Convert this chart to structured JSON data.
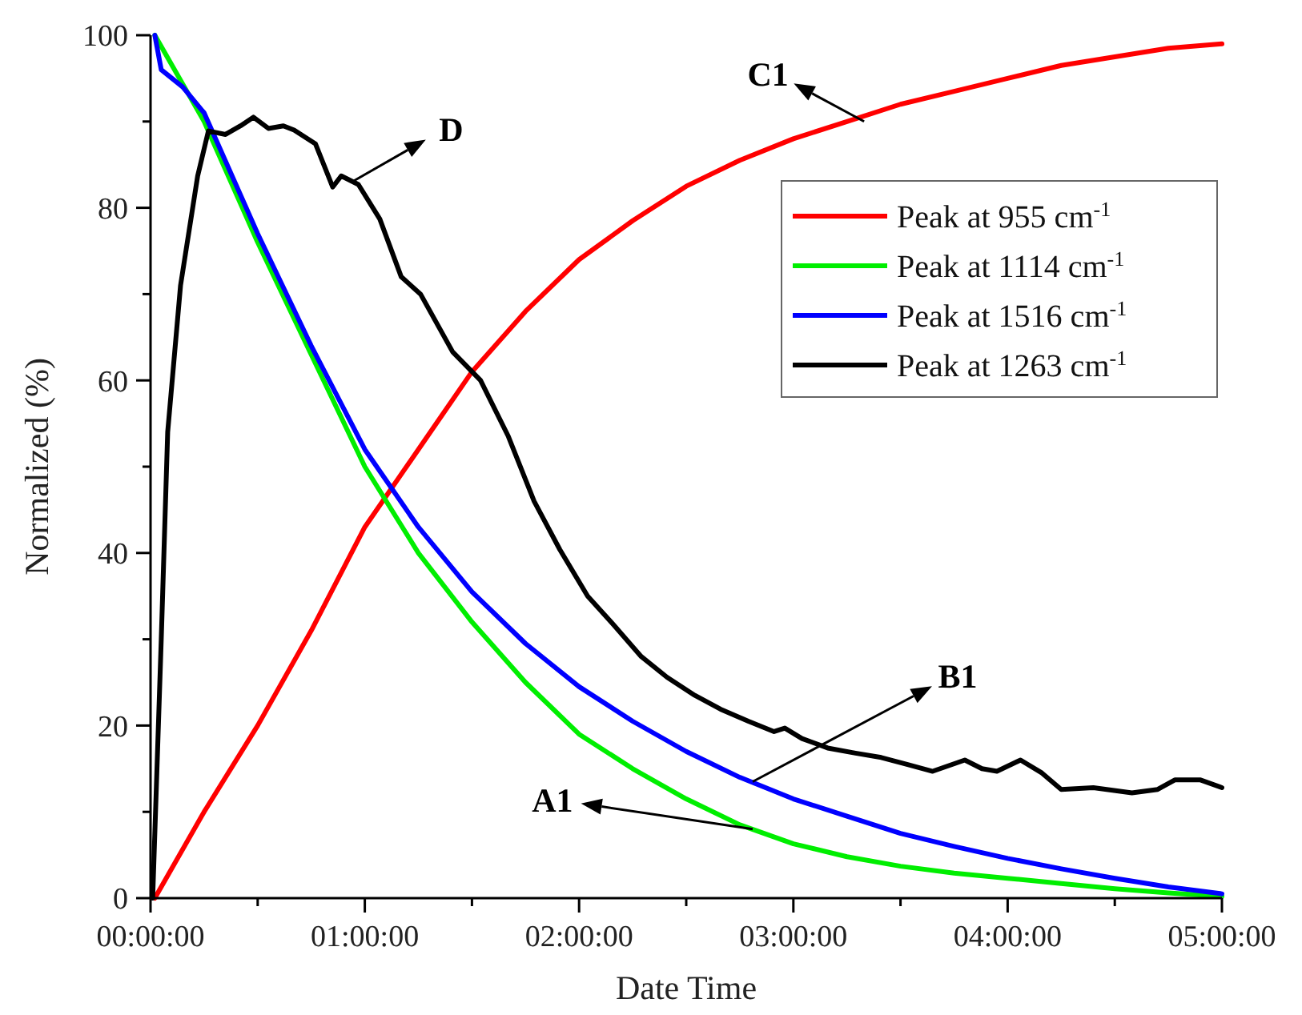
{
  "chart_data": {
    "type": "line",
    "xlabel": "Date Time",
    "ylabel": "Normalized (%)",
    "xlim": [
      0,
      5
    ],
    "ylim": [
      0,
      100
    ],
    "xticks": [
      {
        "value": 0,
        "label": "00:00:00"
      },
      {
        "value": 0.5,
        "label": null
      },
      {
        "value": 1,
        "label": "01:00:00"
      },
      {
        "value": 1.5,
        "label": null
      },
      {
        "value": 2,
        "label": "02:00:00"
      },
      {
        "value": 2.5,
        "label": null
      },
      {
        "value": 3,
        "label": "03:00:00"
      },
      {
        "value": 3.5,
        "label": null
      },
      {
        "value": 4,
        "label": "04:00:00"
      },
      {
        "value": 4.5,
        "label": null
      },
      {
        "value": 5,
        "label": "05:00:00"
      }
    ],
    "yticks": [
      0,
      {
        "value": 10,
        "label": null
      },
      20,
      {
        "value": 30,
        "label": null
      },
      40,
      {
        "value": 50,
        "label": null
      },
      60,
      {
        "value": 70,
        "label": null
      },
      80,
      {
        "value": 90,
        "label": null
      },
      100
    ],
    "grid": false,
    "legend": "top right",
    "marker": "none",
    "line_style": "solid",
    "series": [
      {
        "name": "Peak at 955 cm$^{-1}$",
        "color": "#ff0000",
        "x": [
          0.02,
          0.25,
          0.5,
          0.75,
          1,
          1.25,
          1.5,
          1.75,
          2,
          2.25,
          2.5,
          2.75,
          3,
          3.25,
          3.5,
          3.75,
          4,
          4.25,
          4.5,
          4.75,
          5
        ],
        "values": [
          0,
          10,
          20,
          31,
          43,
          52,
          61,
          68,
          74,
          78.5,
          82.5,
          85.5,
          88,
          90,
          92,
          93.5,
          95,
          96.5,
          97.5,
          98.5,
          99
        ]
      },
      {
        "name": "Peak at 1114 cm$^{-1}$",
        "color": "#00ee00",
        "x": [
          0.02,
          0.25,
          0.5,
          0.75,
          1,
          1.25,
          1.5,
          1.75,
          2,
          2.25,
          2.5,
          2.75,
          3,
          3.25,
          3.5,
          3.75,
          4,
          4.25,
          4.5,
          4.75,
          5
        ],
        "values": [
          100,
          90,
          76,
          63,
          50,
          40,
          32,
          25,
          19,
          15,
          11.5,
          8.5,
          6.3,
          4.8,
          3.7,
          2.9,
          2.3,
          1.7,
          1.1,
          0.6,
          0.2
        ]
      },
      {
        "name": "Peak at 1516 cm$^{-1}$",
        "color": "#0000ff",
        "x": [
          0.02,
          0.05,
          0.15,
          0.25,
          0.5,
          0.75,
          1,
          1.25,
          1.5,
          1.75,
          2,
          2.25,
          2.5,
          2.75,
          3,
          3.25,
          3.5,
          3.75,
          4,
          4.25,
          4.5,
          4.75,
          5
        ],
        "values": [
          100,
          96,
          94,
          91,
          77,
          64,
          52,
          43,
          35.5,
          29.5,
          24.5,
          20.5,
          17,
          14,
          11.5,
          9.5,
          7.5,
          6,
          4.6,
          3.4,
          2.3,
          1.3,
          0.5
        ]
      },
      {
        "name": "Peak at 1263 cm$^{-1}$",
        "color": "#000000",
        "x": [
          0.01,
          0.05,
          0.08,
          0.14,
          0.22,
          0.27,
          0.35,
          0.42,
          0.48,
          0.55,
          0.62,
          0.67,
          0.77,
          0.85,
          0.89,
          0.97,
          1.07,
          1.17,
          1.26,
          1.41,
          1.54,
          1.67,
          1.79,
          1.91,
          2.04,
          2.16,
          2.29,
          2.41,
          2.54,
          2.66,
          2.79,
          2.91,
          2.96,
          3.04,
          3.16,
          3.29,
          3.41,
          3.53,
          3.65,
          3.8,
          3.88,
          3.95,
          4.06,
          4.16,
          4.25,
          4.4,
          4.58,
          4.7,
          4.78,
          4.9,
          5
        ],
        "values": [
          0,
          30,
          54,
          71,
          83.7,
          88.9,
          88.5,
          89.5,
          90.5,
          89.2,
          89.5,
          89,
          87.4,
          82.4,
          83.7,
          82.7,
          78.7,
          72,
          70,
          63.3,
          60,
          53.5,
          46,
          40.4,
          35,
          31.7,
          28,
          25.6,
          23.5,
          21.9,
          20.5,
          19.3,
          19.7,
          18.5,
          17.4,
          16.8,
          16.3,
          15.5,
          14.7,
          16,
          15,
          14.7,
          16,
          14.5,
          12.6,
          12.8,
          12.2,
          12.6,
          13.7,
          13.7,
          12.8
        ]
      }
    ],
    "annotations": [
      {
        "text": "C1",
        "x": 3.33,
        "y": 90
      },
      {
        "text": "D",
        "x": 0.94,
        "y": 83
      },
      {
        "text": "B1",
        "x": 2.81,
        "y": 13.5
      },
      {
        "text": "A1",
        "x": 2.81,
        "y": 8
      }
    ]
  }
}
